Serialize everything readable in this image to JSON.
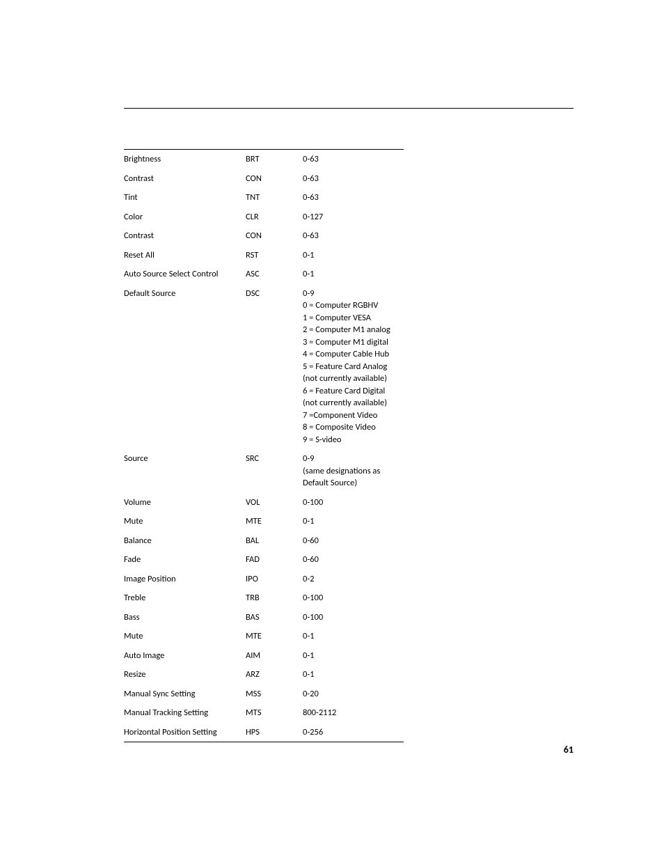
{
  "page_number": "61",
  "table": {
    "rows": [
      {
        "function": "Brightness",
        "command": "BRT",
        "values": "0-63"
      },
      {
        "function": "Contrast",
        "command": "CON",
        "values": "0-63"
      },
      {
        "function": "Tint",
        "command": "TNT",
        "values": "0-63"
      },
      {
        "function": "Color",
        "command": "CLR",
        "values": "0-127"
      },
      {
        "function": "Contrast",
        "command": "CON",
        "values": "0-63"
      },
      {
        "function": "Reset All",
        "command": "RST",
        "values": "0-1"
      },
      {
        "function": "Auto Source Select Control",
        "command": "ASC",
        "values": "0-1"
      },
      {
        "function": "Default Source",
        "command": "DSC",
        "values": "0-9\n0 = Computer RGBHV\n1 = Computer VESA\n2 = Computer M1 analog\n3 = Computer M1 digital\n4 = Computer Cable Hub\n5 = Feature Card Analog (not currently available)\n6 = Feature Card Digital (not currently available)\n7 =Component Video\n8 = Composite Video\n9 = S-video"
      },
      {
        "function": "Source",
        "command": "SRC",
        "values": "0-9\n(same designations as Default Source)"
      },
      {
        "function": "Volume",
        "command": "VOL",
        "values": "0-100"
      },
      {
        "function": "Mute",
        "command": "MTE",
        "values": "0-1"
      },
      {
        "function": "Balance",
        "command": "BAL",
        "values": "0-60"
      },
      {
        "function": "Fade",
        "command": "FAD",
        "values": "0-60"
      },
      {
        "function": "Image Position",
        "command": "IPO",
        "values": "0-2"
      },
      {
        "function": "Treble",
        "command": "TRB",
        "values": "0-100"
      },
      {
        "function": "Bass",
        "command": "BAS",
        "values": "0-100"
      },
      {
        "function": "Mute",
        "command": "MTE",
        "values": "0-1"
      },
      {
        "function": "Auto Image",
        "command": "AIM",
        "values": "0-1"
      },
      {
        "function": "Resize",
        "command": "ARZ",
        "values": "0-1"
      },
      {
        "function": "Manual Sync Setting",
        "command": "MSS",
        "values": "0-20"
      },
      {
        "function": "Manual Tracking Setting",
        "command": "MTS",
        "values": "800-2112"
      },
      {
        "function": "Horizontal Position Setting",
        "command": "HPS",
        "values": "0-256"
      }
    ]
  }
}
